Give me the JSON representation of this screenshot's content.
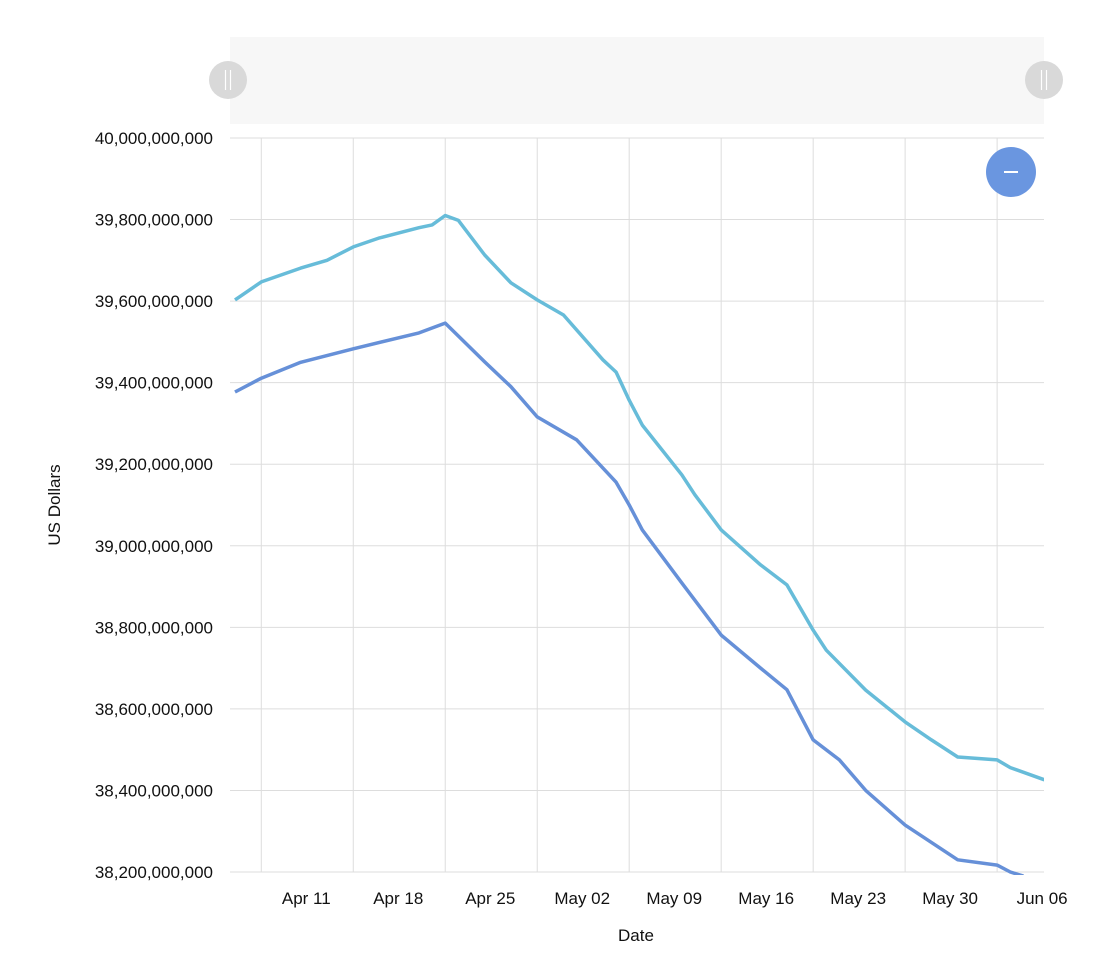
{
  "chart_data": {
    "type": "line",
    "title": "",
    "xlabel": "Date",
    "ylabel": "US Dollars",
    "x_unit": "days since Apr 09",
    "xlim": [
      0,
      61.6
    ],
    "ylim": [
      38200000000,
      40000000000
    ],
    "grid": true,
    "legend": "none",
    "x_ticks": [
      {
        "day": 2,
        "label": "Apr 11"
      },
      {
        "day": 9,
        "label": "Apr 18"
      },
      {
        "day": 16,
        "label": "Apr 25"
      },
      {
        "day": 23,
        "label": "May 02"
      },
      {
        "day": 30,
        "label": "May 09"
      },
      {
        "day": 37,
        "label": "May 16"
      },
      {
        "day": 44,
        "label": "May 23"
      },
      {
        "day": 51,
        "label": "May 30"
      },
      {
        "day": 58,
        "label": "Jun 06"
      }
    ],
    "y_ticks": [
      {
        "value": 40000000000,
        "label": "40,000,000,000"
      },
      {
        "value": 39800000000,
        "label": "39,800,000,000"
      },
      {
        "value": 39600000000,
        "label": "39,600,000,000"
      },
      {
        "value": 39400000000,
        "label": "39,400,000,000"
      },
      {
        "value": 39200000000,
        "label": "39,200,000,000"
      },
      {
        "value": 39000000000,
        "label": "39,000,000,000"
      },
      {
        "value": 38800000000,
        "label": "38,800,000,000"
      },
      {
        "value": 38600000000,
        "label": "38,600,000,000"
      },
      {
        "value": 38400000000,
        "label": "38,400,000,000"
      },
      {
        "value": 38200000000,
        "label": "38,200,000,000"
      }
    ],
    "series": [
      {
        "color": "#67bcd9",
        "x": [
          0,
          2,
          5,
          7,
          9,
          11,
          14,
          15,
          16,
          17,
          19,
          21,
          23,
          25,
          28,
          29,
          30,
          31,
          34,
          35,
          37,
          40,
          42,
          44,
          45,
          48,
          51,
          53,
          55,
          58,
          59,
          61.6
        ],
        "values": [
          39.603,
          39.647,
          39.681,
          39.7,
          39.733,
          39.755,
          39.78,
          39.787,
          39.81,
          39.798,
          39.713,
          39.645,
          39.603,
          39.566,
          39.456,
          39.426,
          39.357,
          39.296,
          39.174,
          39.125,
          39.039,
          38.953,
          38.904,
          38.793,
          38.744,
          38.646,
          38.568,
          38.524,
          38.482,
          38.475,
          38.456,
          38.426
        ],
        "value_unit": "billions USD"
      },
      {
        "color": "#6690d8",
        "x": [
          0,
          2,
          5,
          9,
          14,
          16,
          19,
          21,
          23,
          26,
          29,
          30,
          31,
          34,
          37,
          40,
          42,
          44,
          46,
          48,
          51,
          55,
          58,
          59,
          60
        ],
        "values": [
          39.377,
          39.411,
          39.45,
          39.483,
          39.522,
          39.546,
          39.451,
          39.39,
          39.316,
          39.26,
          39.156,
          39.1,
          39.039,
          38.909,
          38.781,
          38.7,
          38.647,
          38.524,
          38.475,
          38.4,
          38.315,
          38.23,
          38.217,
          38.2,
          38.19
        ],
        "value_unit": "billions USD"
      }
    ]
  },
  "colors": {
    "grid": "#dddddd",
    "navigator_bg": "#f7f7f7",
    "handle": "#d9d9d9",
    "zoom_button": "#6a96e0"
  },
  "controls": {
    "zoom_out_icon": "minus-icon",
    "handle_icon": "grip-icon"
  }
}
